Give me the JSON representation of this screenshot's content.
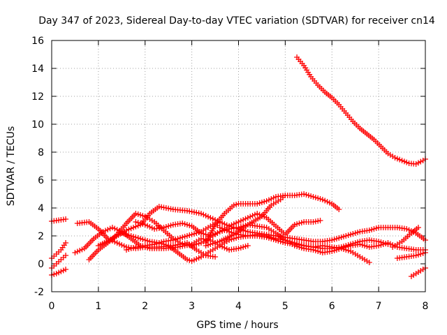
{
  "chart_data": {
    "type": "scatter",
    "title": "Day 347 of 2023, Sidereal Day-to-day VTEC variation (SDTVAR) for receiver cn14",
    "xlabel": "GPS time / hours",
    "ylabel": "SDTVAR / TECUs",
    "xlim": [
      0,
      8
    ],
    "ylim": [
      -2,
      16
    ],
    "xticks": [
      0,
      1,
      2,
      3,
      4,
      5,
      6,
      7,
      8
    ],
    "yticks": [
      -2,
      0,
      2,
      4,
      6,
      8,
      10,
      12,
      14,
      16
    ],
    "grid": true,
    "marker": "+",
    "color": "#ff0000",
    "series": [
      {
        "name": "s1",
        "points": [
          [
            0.0,
            3.05
          ],
          [
            0.1,
            3.1
          ],
          [
            0.2,
            3.15
          ],
          [
            0.3,
            3.2
          ]
        ]
      },
      {
        "name": "s2",
        "points": [
          [
            0.0,
            0.4
          ],
          [
            0.1,
            0.7
          ],
          [
            0.2,
            1.0
          ],
          [
            0.3,
            1.5
          ]
        ]
      },
      {
        "name": "s3",
        "points": [
          [
            0.0,
            -0.3
          ],
          [
            0.1,
            0.0
          ],
          [
            0.2,
            0.3
          ],
          [
            0.3,
            0.6
          ]
        ]
      },
      {
        "name": "s4",
        "points": [
          [
            0.0,
            -0.8
          ],
          [
            0.1,
            -0.7
          ],
          [
            0.2,
            -0.55
          ],
          [
            0.3,
            -0.4
          ]
        ]
      },
      {
        "name": "s5",
        "points": [
          [
            0.55,
            2.9
          ],
          [
            0.8,
            3.0
          ],
          [
            1.0,
            2.5
          ],
          [
            1.2,
            1.8
          ],
          [
            1.4,
            1.5
          ],
          [
            1.6,
            1.2
          ],
          [
            1.8,
            1.1
          ],
          [
            2.0,
            1.2
          ],
          [
            2.3,
            1.2
          ],
          [
            2.6,
            1.3
          ],
          [
            2.9,
            1.5
          ],
          [
            3.1,
            1.0
          ],
          [
            3.3,
            0.6
          ],
          [
            3.5,
            0.5
          ]
        ]
      },
      {
        "name": "s6",
        "points": [
          [
            0.5,
            0.8
          ],
          [
            0.7,
            1.1
          ],
          [
            0.9,
            1.8
          ],
          [
            1.1,
            2.3
          ],
          [
            1.3,
            2.6
          ],
          [
            1.5,
            2.3
          ],
          [
            1.7,
            1.8
          ],
          [
            1.9,
            1.3
          ],
          [
            2.1,
            1.1
          ],
          [
            2.4,
            1.1
          ],
          [
            2.7,
            1.2
          ],
          [
            3.0,
            1.4
          ],
          [
            3.2,
            1.8
          ],
          [
            3.4,
            1.7
          ],
          [
            3.6,
            1.3
          ],
          [
            3.8,
            1.0
          ],
          [
            4.0,
            1.1
          ],
          [
            4.2,
            1.3
          ]
        ]
      },
      {
        "name": "s7",
        "points": [
          [
            0.8,
            0.3
          ],
          [
            1.0,
            1.0
          ],
          [
            1.2,
            1.5
          ],
          [
            1.4,
            2.1
          ],
          [
            1.6,
            2.9
          ],
          [
            1.8,
            3.6
          ],
          [
            2.0,
            3.4
          ],
          [
            2.2,
            3.0
          ],
          [
            2.4,
            2.4
          ],
          [
            2.6,
            1.8
          ],
          [
            2.8,
            1.4
          ],
          [
            3.0,
            1.3
          ],
          [
            3.2,
            1.5
          ],
          [
            3.4,
            1.9
          ],
          [
            3.6,
            2.3
          ],
          [
            3.8,
            2.5
          ],
          [
            4.0,
            2.6
          ],
          [
            4.2,
            2.8
          ],
          [
            4.4,
            2.7
          ],
          [
            4.6,
            2.6
          ],
          [
            4.8,
            2.2
          ],
          [
            5.0,
            1.7
          ],
          [
            5.2,
            1.3
          ],
          [
            5.4,
            1.1
          ],
          [
            5.6,
            1.0
          ],
          [
            5.8,
            0.8
          ],
          [
            6.0,
            0.9
          ],
          [
            6.2,
            1.1
          ],
          [
            6.4,
            1.3
          ],
          [
            6.6,
            1.4
          ],
          [
            6.8,
            1.2
          ],
          [
            7.0,
            1.3
          ],
          [
            7.2,
            1.5
          ],
          [
            7.4,
            1.2
          ],
          [
            7.6,
            1.1
          ],
          [
            7.8,
            1.0
          ],
          [
            8.0,
            1.0
          ]
        ]
      },
      {
        "name": "s8",
        "points": [
          [
            1.0,
            1.3
          ],
          [
            1.3,
            1.8
          ],
          [
            1.6,
            2.4
          ],
          [
            1.9,
            2.8
          ],
          [
            2.1,
            3.6
          ],
          [
            2.3,
            4.1
          ],
          [
            2.6,
            3.9
          ],
          [
            2.9,
            3.8
          ],
          [
            3.2,
            3.6
          ],
          [
            3.4,
            3.3
          ],
          [
            3.6,
            3.0
          ],
          [
            3.8,
            2.7
          ],
          [
            4.0,
            2.5
          ],
          [
            4.2,
            2.3
          ],
          [
            4.4,
            2.2
          ],
          [
            4.6,
            2.1
          ],
          [
            4.8,
            2.0
          ],
          [
            5.0,
            1.9
          ],
          [
            5.2,
            1.8
          ],
          [
            5.4,
            1.7
          ],
          [
            5.6,
            1.6
          ],
          [
            5.8,
            1.6
          ],
          [
            6.0,
            1.7
          ],
          [
            6.2,
            1.9
          ],
          [
            6.4,
            2.1
          ],
          [
            6.6,
            2.3
          ],
          [
            6.8,
            2.4
          ],
          [
            7.0,
            2.6
          ],
          [
            7.2,
            2.6
          ],
          [
            7.4,
            2.6
          ],
          [
            7.6,
            2.5
          ],
          [
            7.8,
            2.2
          ],
          [
            8.0,
            1.7
          ]
        ]
      },
      {
        "name": "s9",
        "points": [
          [
            1.6,
            1.0
          ],
          [
            1.8,
            1.2
          ],
          [
            2.0,
            1.3
          ],
          [
            2.2,
            1.4
          ],
          [
            2.4,
            1.6
          ],
          [
            2.6,
            1.7
          ],
          [
            2.8,
            1.9
          ],
          [
            3.0,
            2.1
          ],
          [
            3.2,
            2.3
          ],
          [
            3.4,
            2.7
          ],
          [
            3.5,
            2.9
          ],
          [
            3.6,
            2.6
          ],
          [
            3.8,
            2.3
          ],
          [
            4.0,
            2.1
          ],
          [
            4.2,
            2.0
          ],
          [
            4.4,
            2.0
          ],
          [
            4.6,
            1.9
          ],
          [
            4.8,
            1.7
          ],
          [
            5.0,
            1.5
          ],
          [
            5.2,
            1.4
          ],
          [
            5.4,
            1.3
          ],
          [
            5.6,
            1.2
          ],
          [
            5.8,
            1.1
          ],
          [
            6.0,
            1.1
          ],
          [
            6.2,
            1.2
          ],
          [
            6.4,
            1.4
          ],
          [
            6.6,
            1.6
          ],
          [
            6.8,
            1.7
          ],
          [
            7.0,
            1.6
          ],
          [
            7.2,
            1.4
          ]
        ]
      },
      {
        "name": "s10",
        "points": [
          [
            1.5,
            2.2
          ],
          [
            1.7,
            2.0
          ],
          [
            1.9,
            1.8
          ],
          [
            2.1,
            1.6
          ],
          [
            2.3,
            1.5
          ],
          [
            2.5,
            1.3
          ],
          [
            2.7,
            0.8
          ],
          [
            2.9,
            0.3
          ],
          [
            3.0,
            0.2
          ],
          [
            3.2,
            0.5
          ],
          [
            3.4,
            0.9
          ],
          [
            3.6,
            1.3
          ],
          [
            3.8,
            1.7
          ],
          [
            4.0,
            1.9
          ],
          [
            4.2,
            2.0
          ],
          [
            4.4,
            2.1
          ],
          [
            4.6,
            2.0
          ],
          [
            4.8,
            1.8
          ],
          [
            5.0,
            1.7
          ],
          [
            5.2,
            1.5
          ],
          [
            5.4,
            1.3
          ],
          [
            5.6,
            1.2
          ],
          [
            5.8,
            1.3
          ],
          [
            6.0,
            1.2
          ],
          [
            6.2,
            1.1
          ],
          [
            6.4,
            0.9
          ],
          [
            6.6,
            0.5
          ],
          [
            6.8,
            0.1
          ]
        ]
      },
      {
        "name": "s11",
        "points": [
          [
            1.8,
            3.0
          ],
          [
            2.0,
            2.8
          ],
          [
            2.2,
            2.5
          ],
          [
            2.4,
            2.6
          ],
          [
            2.6,
            2.8
          ],
          [
            2.8,
            2.9
          ],
          [
            3.0,
            2.7
          ],
          [
            3.2,
            2.2
          ],
          [
            3.4,
            2.0
          ],
          [
            3.6,
            2.3
          ],
          [
            3.8,
            2.7
          ],
          [
            4.0,
            3.0
          ],
          [
            4.2,
            3.3
          ],
          [
            4.4,
            3.6
          ],
          [
            4.6,
            3.3
          ],
          [
            4.8,
            2.7
          ],
          [
            5.0,
            2.1
          ],
          [
            5.2,
            2.8
          ],
          [
            5.4,
            3.0
          ],
          [
            5.6,
            3.0
          ],
          [
            5.75,
            3.1
          ]
        ]
      },
      {
        "name": "s12",
        "points": [
          [
            3.3,
            1.5
          ],
          [
            3.5,
            2.8
          ],
          [
            3.7,
            3.6
          ],
          [
            3.9,
            4.2
          ],
          [
            4.0,
            4.3
          ],
          [
            4.2,
            4.3
          ],
          [
            4.4,
            4.3
          ],
          [
            4.6,
            4.5
          ],
          [
            4.8,
            4.8
          ],
          [
            5.0,
            4.9
          ],
          [
            5.2,
            4.9
          ],
          [
            5.4,
            5.0
          ],
          [
            5.6,
            4.8
          ],
          [
            5.8,
            4.6
          ],
          [
            6.0,
            4.3
          ],
          [
            6.15,
            3.9
          ]
        ]
      },
      {
        "name": "s13",
        "points": [
          [
            3.3,
            1.3
          ],
          [
            3.6,
            1.6
          ],
          [
            3.9,
            2.1
          ],
          [
            4.2,
            2.8
          ],
          [
            4.5,
            3.4
          ],
          [
            4.7,
            4.2
          ],
          [
            4.9,
            4.6
          ],
          [
            5.0,
            4.9
          ]
        ]
      },
      {
        "name": "s14",
        "points": [
          [
            5.25,
            14.8
          ],
          [
            5.4,
            14.2
          ],
          [
            5.55,
            13.4
          ],
          [
            5.7,
            12.8
          ],
          [
            5.85,
            12.3
          ],
          [
            6.0,
            11.9
          ],
          [
            6.15,
            11.4
          ],
          [
            6.3,
            10.8
          ],
          [
            6.45,
            10.2
          ],
          [
            6.6,
            9.7
          ],
          [
            6.75,
            9.3
          ],
          [
            6.9,
            8.9
          ],
          [
            7.05,
            8.4
          ],
          [
            7.2,
            7.9
          ],
          [
            7.35,
            7.6
          ],
          [
            7.5,
            7.4
          ],
          [
            7.65,
            7.2
          ],
          [
            7.8,
            7.15
          ],
          [
            7.95,
            7.4
          ],
          [
            8.0,
            7.5
          ]
        ]
      },
      {
        "name": "s15",
        "points": [
          [
            7.4,
            0.4
          ],
          [
            7.6,
            0.5
          ],
          [
            7.8,
            0.6
          ],
          [
            8.0,
            0.8
          ]
        ]
      },
      {
        "name": "s16",
        "points": [
          [
            7.7,
            -0.9
          ],
          [
            7.8,
            -0.7
          ],
          [
            7.9,
            -0.5
          ],
          [
            8.0,
            -0.3
          ]
        ]
      },
      {
        "name": "s17",
        "points": [
          [
            7.3,
            1.2
          ],
          [
            7.5,
            1.6
          ],
          [
            7.7,
            2.2
          ],
          [
            7.85,
            2.6
          ]
        ]
      }
    ]
  }
}
